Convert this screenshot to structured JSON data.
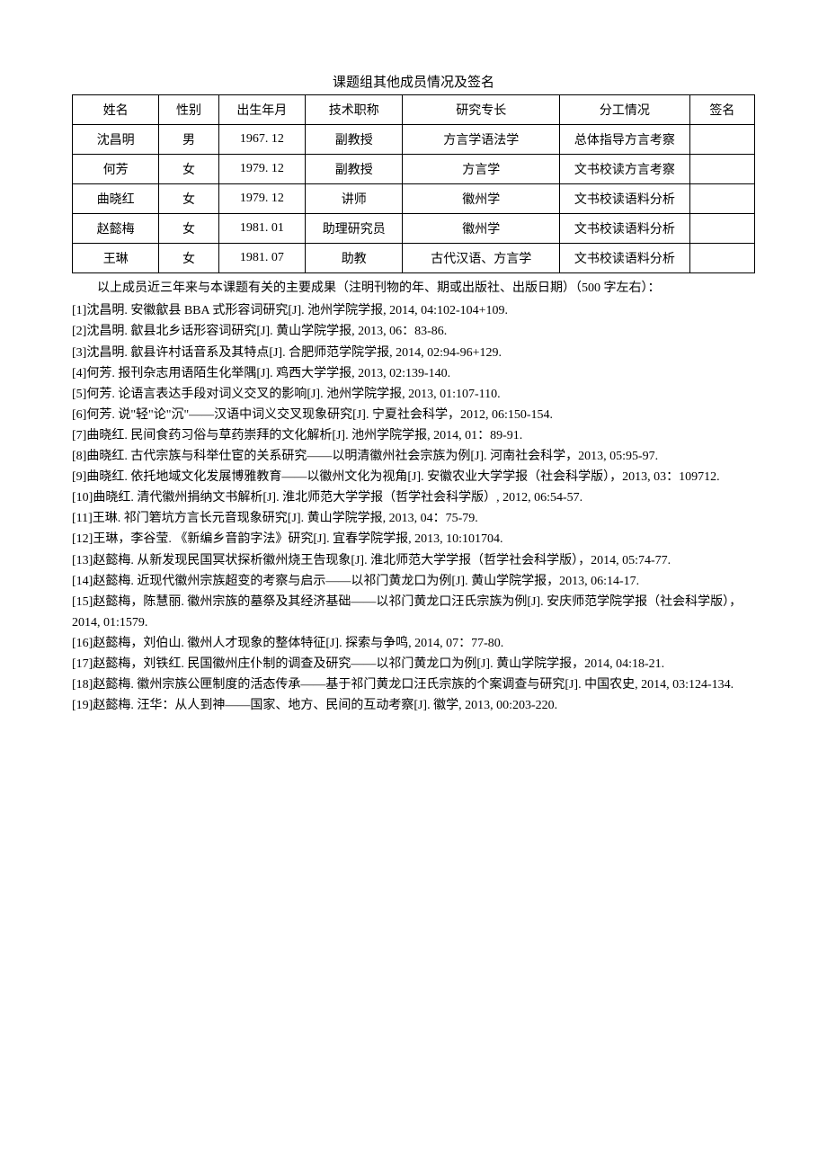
{
  "title": "课题组其他成员情况及签名",
  "table": {
    "headers": [
      "姓名",
      "性别",
      "出生年月",
      "技术职称",
      "研究专长",
      "分工情况",
      "签名"
    ],
    "rows": [
      [
        "沈昌明",
        "男",
        "1967. 12",
        "副教授",
        "方言学语法学",
        "总体指导方言考察",
        ""
      ],
      [
        "何芳",
        "女",
        "1979. 12",
        "副教授",
        "方言学",
        "文书校读方言考察",
        ""
      ],
      [
        "曲晓红",
        "女",
        "1979. 12",
        "讲师",
        "徽州学",
        "文书校读语料分析",
        ""
      ],
      [
        "赵懿梅",
        "女",
        "1981. 01",
        "助理研究员",
        "徽州学",
        "文书校读语料分析",
        ""
      ],
      [
        "王琳",
        "女",
        "1981. 07",
        "助教",
        "古代汉语、方言学",
        "文书校读语料分析",
        ""
      ]
    ]
  },
  "intro": "以上成员近三年来与本课题有关的主要成果（注明刊物的年、期或出版社、出版日期）（500 字左右）：",
  "refs": [
    "[1]沈昌明. 安徽歙县 BBA 式形容词研究[J]. 池州学院学报, 2014, 04:102-104+109.",
    "[2]沈昌明. 歙县北乡话形容词研究[J]. 黄山学院学报, 2013, 06：83-86.",
    "[3]沈昌明. 歙县许村话音系及其特点[J]. 合肥师范学院学报, 2014, 02:94-96+129.",
    "[4]何芳. 报刊杂志用语陌生化举隅[J]. 鸡西大学学报, 2013, 02:139-140.",
    "[5]何芳. 论语言表达手段对词义交叉的影响[J]. 池州学院学报, 2013, 01:107-110.",
    "[6]何芳. 说\"轻\"论\"沉\"——汉语中词义交叉现象研究[J]. 宁夏社会科学，2012, 06:150-154.",
    "[7]曲晓红. 民间食药习俗与草药崇拜的文化解析[J]. 池州学院学报, 2014, 01：89-91.",
    "[8]曲晓红. 古代宗族与科举仕宦的关系研究——以明清徽州社会宗族为例[J]. 河南社会科学，2013, 05:95-97.",
    "[9]曲晓红. 依托地域文化发展博雅教育——以徽州文化为视角[J]. 安徽农业大学学报（社会科学版），2013, 03：109712.",
    "[10]曲晓红. 清代徽州捐纳文书解析[J]. 淮北师范大学学报（哲学社会科学版）, 2012, 06:54-57.",
    "[11]王琳. 祁门箬坑方言长元音现象研究[J]. 黄山学院学报, 2013, 04：75-79.",
    "[12]王琳，李谷莹. 《新编乡音韵字法》研究[J]. 宜春学院学报, 2013, 10:101704.",
    "[13]赵懿梅. 从新发现民国冥状探析徽州烧王告现象[J]. 淮北师范大学学报（哲学社会科学版），2014, 05:74-77.",
    "[14]赵懿梅. 近现代徽州宗族超变的考察与启示——以祁门黄龙口为例[J]. 黄山学院学报，2013, 06:14-17.",
    "[15]赵懿梅，陈慧丽. 徽州宗族的墓祭及其经济基础——以祁门黄龙口汪氏宗族为例[J]. 安庆师范学院学报（社会科学版），2014, 01:1579.",
    "[16]赵懿梅，刘伯山. 徽州人才现象的整体特征[J]. 探索与争鸣, 2014, 07：77-80.",
    "[17]赵懿梅，刘铁红. 民国徽州庄仆制的调查及研究——以祁门黄龙口为例[J]. 黄山学院学报，2014, 04:18-21.",
    "[18]赵懿梅. 徽州宗族公匣制度的活态传承——基于祁门黄龙口汪氏宗族的个案调查与研究[J]. 中国农史, 2014, 03:124-134.",
    "[19]赵懿梅. 汪华：从人到神——国家、地方、民间的互动考察[J]. 徽学, 2013, 00:203-220."
  ]
}
